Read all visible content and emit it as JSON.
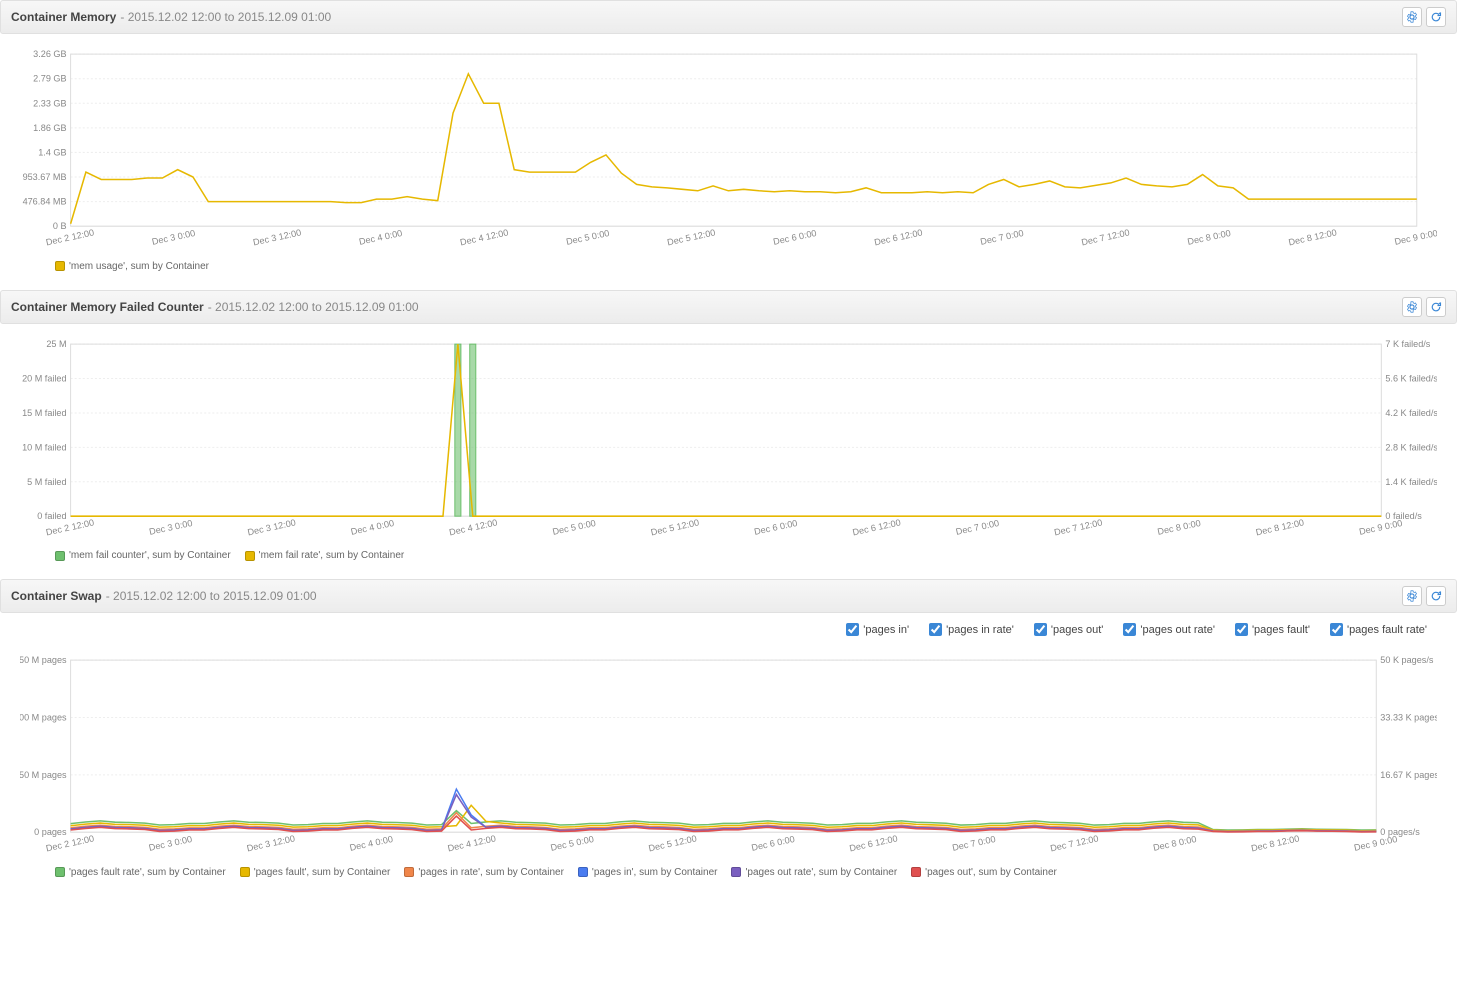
{
  "date_range_suffix": " - 2015.12.02 12:00 to 2015.12.09 01:00",
  "colors": {
    "grid": "#eeeeee",
    "axis_text": "#888888",
    "yellow": "#e6b800",
    "green": "#6ec06e",
    "orange": "#f0864a",
    "blue": "#4a7cf0",
    "purple": "#7a5fc0",
    "red": "#e05050"
  },
  "x_ticks": [
    "Dec 2 12:00",
    "Dec 3 0:00",
    "Dec 3 12:00",
    "Dec 4 0:00",
    "Dec 4 12:00",
    "Dec 5 0:00",
    "Dec 5 12:00",
    "Dec 6 0:00",
    "Dec 6 12:00",
    "Dec 7 0:00",
    "Dec 7 12:00",
    "Dec 8 0:00",
    "Dec 8 12:00",
    "Dec 9 0:00"
  ],
  "panels": {
    "memory": {
      "title": "Container Memory",
      "y_ticks": [
        "0 B",
        "476.84 MB",
        "953.67 MB",
        "1.4 GB",
        "1.86 GB",
        "2.33 GB",
        "2.79 GB",
        "3.26 GB"
      ],
      "y_max": 3.5,
      "series": [
        {
          "name": "'mem usage', sum by Container",
          "color": "#e6b800",
          "data": [
            0.05,
            1.1,
            0.95,
            0.95,
            0.95,
            0.98,
            0.98,
            1.15,
            1.0,
            0.5,
            0.5,
            0.5,
            0.5,
            0.5,
            0.5,
            0.5,
            0.5,
            0.5,
            0.48,
            0.48,
            0.55,
            0.55,
            0.6,
            0.55,
            0.52,
            2.3,
            3.1,
            2.5,
            2.5,
            1.15,
            1.1,
            1.1,
            1.1,
            1.1,
            1.3,
            1.45,
            1.08,
            0.85,
            0.8,
            0.78,
            0.75,
            0.72,
            0.82,
            0.72,
            0.75,
            0.72,
            0.7,
            0.72,
            0.7,
            0.7,
            0.68,
            0.7,
            0.78,
            0.68,
            0.68,
            0.68,
            0.7,
            0.68,
            0.7,
            0.68,
            0.85,
            0.95,
            0.8,
            0.85,
            0.92,
            0.8,
            0.78,
            0.83,
            0.88,
            0.98,
            0.85,
            0.82,
            0.8,
            0.85,
            1.05,
            0.82,
            0.78,
            0.55,
            0.55,
            0.55,
            0.55,
            0.55,
            0.55,
            0.55,
            0.55,
            0.55,
            0.55,
            0.55,
            0.55
          ]
        }
      ],
      "legend": [
        {
          "swatch": "#e6b800",
          "label": "'mem usage', sum by Container"
        }
      ]
    },
    "failed": {
      "title": "Container Memory Failed Counter",
      "y_ticks_left": [
        "0 failed",
        "5 M failed",
        "10 M failed",
        "15 M failed",
        "20 M failed",
        "25 M"
      ],
      "y_ticks_right": [
        "0 failed/s",
        "1.4 K failed/s",
        "2.8 K failed/s",
        "4.2 K failed/s",
        "5.6 K failed/s",
        "7 K failed/s"
      ],
      "y_max": 25,
      "series": [
        {
          "name": "'mem fail counter', sum by Container",
          "color": "#6ec06e",
          "type": "bar",
          "data": [
            0,
            0,
            0,
            0,
            0,
            0,
            0,
            0,
            0,
            0,
            0,
            0,
            0,
            0,
            0,
            0,
            0,
            0,
            0,
            0,
            0,
            0,
            0,
            0,
            0,
            0,
            25,
            25,
            0,
            0,
            0,
            0,
            0,
            0,
            0,
            0,
            0,
            0,
            0,
            0,
            0,
            0,
            0,
            0,
            0,
            0,
            0,
            0,
            0,
            0,
            0,
            0,
            0,
            0,
            0,
            0,
            0,
            0,
            0,
            0,
            0,
            0,
            0,
            0,
            0,
            0,
            0,
            0,
            0,
            0,
            0,
            0,
            0,
            0,
            0,
            0,
            0,
            0,
            0,
            0,
            0,
            0,
            0,
            0,
            0,
            0,
            0,
            0,
            0
          ]
        },
        {
          "name": "'mem fail rate', sum by Container",
          "color": "#e6b800",
          "data": [
            0,
            0,
            0,
            0,
            0,
            0,
            0,
            0,
            0,
            0,
            0,
            0,
            0,
            0,
            0,
            0,
            0,
            0,
            0,
            0,
            0,
            0,
            0,
            0,
            0,
            0,
            25,
            0,
            0,
            0,
            0,
            0,
            0,
            0,
            0,
            0,
            0,
            0,
            0,
            0,
            0,
            0,
            0,
            0,
            0,
            0,
            0,
            0,
            0,
            0,
            0,
            0,
            0,
            0,
            0,
            0,
            0,
            0,
            0,
            0,
            0,
            0,
            0,
            0,
            0,
            0,
            0,
            0,
            0,
            0,
            0,
            0,
            0,
            0,
            0,
            0,
            0,
            0,
            0,
            0,
            0,
            0,
            0,
            0,
            0,
            0,
            0,
            0,
            0
          ]
        }
      ],
      "legend": [
        {
          "swatch": "#6ec06e",
          "label": "'mem fail counter', sum by Container"
        },
        {
          "swatch": "#e6b800",
          "label": "'mem fail rate', sum by Container"
        }
      ]
    },
    "swap": {
      "title": "Container Swap",
      "y_ticks_left": [
        "0 pages",
        "50 M pages",
        "100 M pages",
        "150 M pages"
      ],
      "y_ticks_right": [
        "0 pages/s",
        "16.67 K pages/s",
        "33.33 K pages/s",
        "50 K pages/s"
      ],
      "y_max": 160,
      "filters": [
        {
          "label": "'pages in'",
          "checked": true
        },
        {
          "label": "'pages in rate'",
          "checked": true
        },
        {
          "label": "'pages out'",
          "checked": true
        },
        {
          "label": "'pages out rate'",
          "checked": true
        },
        {
          "label": "'pages fault'",
          "checked": true
        },
        {
          "label": "'pages fault rate'",
          "checked": true
        }
      ],
      "series": [
        {
          "name": "pages fault rate",
          "color": "#6ec06e",
          "data_base": 8,
          "spike_idx": 26,
          "spike_val": 20
        },
        {
          "name": "pages fault",
          "color": "#e6b800",
          "data_base": 6,
          "spike_idx": 27,
          "spike_val": 25
        },
        {
          "name": "pages in rate",
          "color": "#f0864a",
          "data_base": 4,
          "spike_idx": 26,
          "spike_val": 18
        },
        {
          "name": "pages in",
          "color": "#4a7cf0",
          "data_base": 3,
          "spike_idx": 26,
          "spike_val": 40
        },
        {
          "name": "pages out rate",
          "color": "#7a5fc0",
          "data_base": 3,
          "spike_idx": 26,
          "spike_val": 35
        },
        {
          "name": "pages out",
          "color": "#e05050",
          "data_base": 2,
          "spike_idx": 26,
          "spike_val": 15
        }
      ],
      "legend": [
        {
          "swatch": "#6ec06e",
          "label": "'pages fault rate', sum by Container"
        },
        {
          "swatch": "#e6b800",
          "label": "'pages fault', sum by Container"
        },
        {
          "swatch": "#f0864a",
          "label": "'pages in rate', sum by Container"
        },
        {
          "swatch": "#4a7cf0",
          "label": "'pages in', sum by Container"
        },
        {
          "swatch": "#7a5fc0",
          "label": "'pages out rate', sum by Container"
        },
        {
          "swatch": "#e05050",
          "label": "'pages out', sum by Container"
        }
      ]
    }
  }
}
